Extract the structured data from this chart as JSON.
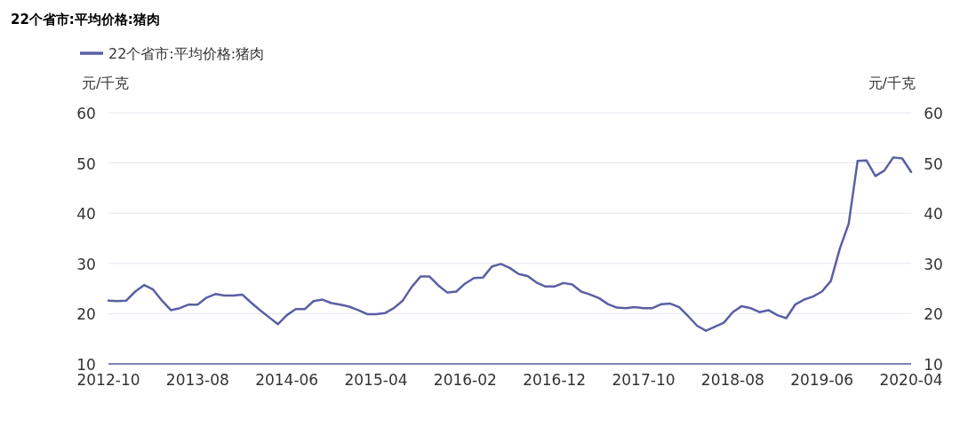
{
  "chart_data": {
    "type": "line",
    "title": "22个省市:平均价格:猪肉",
    "ylabel": "元/千克",
    "y2label": "元/千克",
    "x": [
      "2012-10",
      "2012-11",
      "2012-12",
      "2013-01",
      "2013-02",
      "2013-03",
      "2013-04",
      "2013-05",
      "2013-06",
      "2013-07",
      "2013-08",
      "2013-09",
      "2013-10",
      "2013-11",
      "2013-12",
      "2014-01",
      "2014-02",
      "2014-03",
      "2014-04",
      "2014-05",
      "2014-06",
      "2014-07",
      "2014-08",
      "2014-09",
      "2014-10",
      "2014-11",
      "2014-12",
      "2015-01",
      "2015-02",
      "2015-03",
      "2015-04",
      "2015-05",
      "2015-06",
      "2015-07",
      "2015-08",
      "2015-09",
      "2015-10",
      "2015-11",
      "2015-12",
      "2016-01",
      "2016-02",
      "2016-03",
      "2016-04",
      "2016-05",
      "2016-06",
      "2016-07",
      "2016-08",
      "2016-09",
      "2016-10",
      "2016-11",
      "2016-12",
      "2017-01",
      "2017-02",
      "2017-03",
      "2017-04",
      "2017-05",
      "2017-06",
      "2017-07",
      "2017-08",
      "2017-09",
      "2017-10",
      "2017-11",
      "2017-12",
      "2018-01",
      "2018-02",
      "2018-03",
      "2018-04",
      "2018-05",
      "2018-06",
      "2018-07",
      "2018-08",
      "2018-09",
      "2018-10",
      "2018-11",
      "2018-12",
      "2019-01",
      "2019-02",
      "2019-03",
      "2019-04",
      "2019-05",
      "2019-06",
      "2019-07",
      "2019-08",
      "2019-09",
      "2019-10",
      "2019-11",
      "2019-12",
      "2020-01",
      "2020-02",
      "2020-03",
      "2020-04"
    ],
    "series": [
      {
        "name": "22个省市:平均价格:猪肉",
        "color": "#5b5fa3",
        "values": [
          22.6,
          22.5,
          22.6,
          24.4,
          25.7,
          24.8,
          22.6,
          20.7,
          21.1,
          21.8,
          21.8,
          23.2,
          23.9,
          23.6,
          23.6,
          23.8,
          22.2,
          20.7,
          19.3,
          17.9,
          19.7,
          20.9,
          20.9,
          22.5,
          22.8,
          22.1,
          21.8,
          21.4,
          20.7,
          19.9,
          19.9,
          20.1,
          21.1,
          22.6,
          25.3,
          27.4,
          27.4,
          25.6,
          24.2,
          24.4,
          26.0,
          27.1,
          27.2,
          29.4,
          29.9,
          29.1,
          27.9,
          27.5,
          26.2,
          25.4,
          25.4,
          26.1,
          25.8,
          24.4,
          23.8,
          23.1,
          21.9,
          21.2,
          21.1,
          21.3,
          21.1,
          21.1,
          21.9,
          22.0,
          21.3,
          19.5,
          17.6,
          16.6,
          17.4,
          18.2,
          20.3,
          21.5,
          21.1,
          20.3,
          20.7,
          19.7,
          19.1,
          21.8,
          22.8,
          23.4,
          24.4,
          26.5,
          32.9,
          37.9,
          50.4,
          50.5,
          47.4,
          48.5,
          51.1,
          50.9,
          48.2
        ]
      }
    ],
    "xlim": [
      "2012-10",
      "2020-04"
    ],
    "xticks": [
      "2012-10",
      "2013-08",
      "2014-06",
      "2015-04",
      "2016-02",
      "2016-12",
      "2017-10",
      "2018-08",
      "2019-06",
      "2020-04"
    ],
    "ylim": [
      10,
      60
    ],
    "yticks": [
      10,
      20,
      30,
      40,
      50,
      60
    ],
    "y2lim": [
      10,
      60
    ],
    "y2ticks": [
      10,
      20,
      30,
      40,
      50,
      60
    ],
    "grid": "y",
    "legend": "top left",
    "marker": "none",
    "line_style": "solid"
  }
}
